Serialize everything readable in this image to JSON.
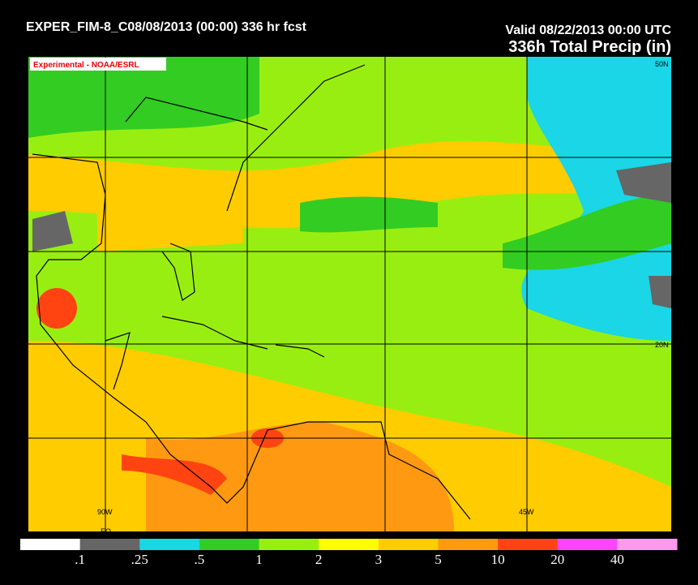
{
  "header": {
    "run": "EXPER_FIM-8_C08/08/2013 (00:00) 336 hr fcst",
    "valid": "Valid 08/22/2013 00:00 UTC",
    "product": "336h Total Precip (in)",
    "badge": "Experimental - NOAA/ESRL"
  },
  "map": {
    "lat_labels": [
      "50N",
      "20N"
    ],
    "lon_labels": [
      "90W",
      "45W"
    ],
    "eq_label": "EQ"
  },
  "legend": {
    "labels": [
      ".1",
      ".25",
      ".5",
      "1",
      "2",
      "3",
      "5",
      "10",
      "20",
      "40"
    ],
    "colors": [
      "#ffffff",
      "#666666",
      "#1ad6e6",
      "#33cc22",
      "#99ee11",
      "#ffff00",
      "#ffcc00",
      "#ff9911",
      "#ff4411",
      "#ff44ff",
      "#ff99ee"
    ]
  }
}
